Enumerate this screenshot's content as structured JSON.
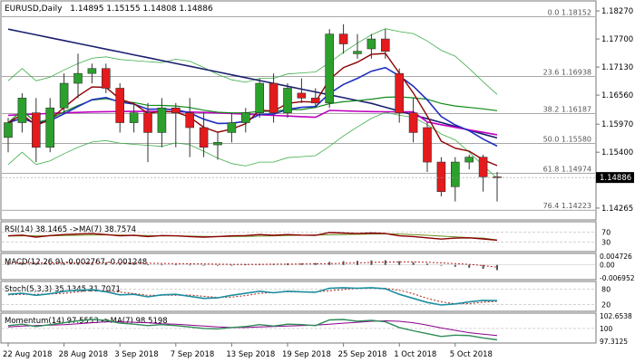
{
  "header": {
    "symbol": "EURUSD,Daily",
    "quote": "1.14895 1.15155 1.14808 1.14886"
  },
  "colors": {
    "bull": "#2ca02c",
    "bear": "#e41a1c",
    "ma_dark": "#8b0000",
    "ma_blue": "#1f2fbf",
    "ma_navy": "#1a1f6e",
    "ma_green": "#0e8a16",
    "ma_magenta": "#c000c0",
    "band": "#3fae49",
    "fib": "#8a8a8a",
    "pane_border": "#777777",
    "price_tag_bg": "#000000",
    "rsi_line": "#8b0000",
    "rsi_signal": "#6b8e23",
    "stoch_main": "#1b8fa0",
    "stoch_signal": "#b22222",
    "momentum_main": "#2e8b57",
    "momentum_signal": "#8b008b"
  },
  "main_chart": {
    "price_axis": [
      "1.18270",
      "1.17700",
      "1.17130",
      "1.16560",
      "1.15970",
      "1.15400",
      "1.14886",
      "1.14265"
    ],
    "current_price_label": "1.14886",
    "fib_levels": [
      {
        "label": "0.0 1.18152",
        "price": 1.18152
      },
      {
        "label": "23.6 1.16938",
        "price": 1.16938
      },
      {
        "label": "38.2 1.16187",
        "price": 1.16187
      },
      {
        "label": "50.0 1.15580",
        "price": 1.1558
      },
      {
        "label": "61.8 1.14974",
        "price": 1.14974
      },
      {
        "label": "76.4 1.14223",
        "price": 1.14223
      }
    ]
  },
  "chart_data": {
    "type": "candlestick",
    "ylim": [
      1.1408,
      1.184
    ],
    "x_labels": [
      "22 Aug 2018",
      "28 Aug 2018",
      "3 Sep 2018",
      "7 Sep 2018",
      "13 Sep 2018",
      "19 Sep 2018",
      "25 Sep 2018",
      "1 Oct 2018",
      "5 Oct 2018"
    ],
    "x_label_index": [
      0,
      4,
      8,
      12,
      16,
      20,
      24,
      28,
      32
    ],
    "candles": [
      {
        "o": 1.157,
        "h": 1.161,
        "l": 1.154,
        "c": 1.16
      },
      {
        "o": 1.16,
        "h": 1.166,
        "l": 1.158,
        "c": 1.165
      },
      {
        "o": 1.162,
        "h": 1.165,
        "l": 1.152,
        "c": 1.155
      },
      {
        "o": 1.155,
        "h": 1.165,
        "l": 1.154,
        "c": 1.163
      },
      {
        "o": 1.163,
        "h": 1.17,
        "l": 1.162,
        "c": 1.168
      },
      {
        "o": 1.168,
        "h": 1.174,
        "l": 1.165,
        "c": 1.17
      },
      {
        "o": 1.17,
        "h": 1.172,
        "l": 1.168,
        "c": 1.171
      },
      {
        "o": 1.171,
        "h": 1.172,
        "l": 1.166,
        "c": 1.167
      },
      {
        "o": 1.167,
        "h": 1.168,
        "l": 1.158,
        "c": 1.16
      },
      {
        "o": 1.16,
        "h": 1.164,
        "l": 1.158,
        "c": 1.162
      },
      {
        "o": 1.162,
        "h": 1.164,
        "l": 1.152,
        "c": 1.158
      },
      {
        "o": 1.158,
        "h": 1.165,
        "l": 1.155,
        "c": 1.163
      },
      {
        "o": 1.163,
        "h": 1.164,
        "l": 1.155,
        "c": 1.162
      },
      {
        "o": 1.162,
        "h": 1.165,
        "l": 1.153,
        "c": 1.159
      },
      {
        "o": 1.159,
        "h": 1.162,
        "l": 1.153,
        "c": 1.155
      },
      {
        "o": 1.1555,
        "h": 1.158,
        "l": 1.1525,
        "c": 1.156
      },
      {
        "o": 1.158,
        "h": 1.162,
        "l": 1.156,
        "c": 1.16
      },
      {
        "o": 1.16,
        "h": 1.163,
        "l": 1.158,
        "c": 1.162
      },
      {
        "o": 1.162,
        "h": 1.169,
        "l": 1.161,
        "c": 1.168
      },
      {
        "o": 1.168,
        "h": 1.17,
        "l": 1.16,
        "c": 1.162
      },
      {
        "o": 1.162,
        "h": 1.168,
        "l": 1.161,
        "c": 1.167
      },
      {
        "o": 1.166,
        "h": 1.169,
        "l": 1.164,
        "c": 1.165
      },
      {
        "o": 1.165,
        "h": 1.167,
        "l": 1.163,
        "c": 1.164
      },
      {
        "o": 1.164,
        "h": 1.179,
        "l": 1.163,
        "c": 1.178
      },
      {
        "o": 1.178,
        "h": 1.18,
        "l": 1.174,
        "c": 1.176
      },
      {
        "o": 1.174,
        "h": 1.178,
        "l": 1.173,
        "c": 1.1745
      },
      {
        "o": 1.175,
        "h": 1.178,
        "l": 1.173,
        "c": 1.177
      },
      {
        "o": 1.177,
        "h": 1.179,
        "l": 1.173,
        "c": 1.1745
      },
      {
        "o": 1.17,
        "h": 1.171,
        "l": 1.16,
        "c": 1.162
      },
      {
        "o": 1.162,
        "h": 1.165,
        "l": 1.156,
        "c": 1.158
      },
      {
        "o": 1.159,
        "h": 1.16,
        "l": 1.15,
        "c": 1.152
      },
      {
        "o": 1.152,
        "h": 1.153,
        "l": 1.145,
        "c": 1.146
      },
      {
        "o": 1.147,
        "h": 1.153,
        "l": 1.144,
        "c": 1.152
      },
      {
        "o": 1.152,
        "h": 1.1535,
        "l": 1.1505,
        "c": 1.153
      },
      {
        "o": 1.153,
        "h": 1.1535,
        "l": 1.146,
        "c": 1.149
      },
      {
        "o": 1.149,
        "h": 1.15,
        "l": 1.144,
        "c": 1.1489
      }
    ]
  },
  "indicators": {
    "rsi": {
      "label": "RSI(14) 38.1465  ->MA(7) 38.7574",
      "axis": [
        "70",
        "30"
      ],
      "levels": [
        70,
        30
      ],
      "range": [
        0,
        100
      ],
      "line": [
        55,
        58,
        50,
        56,
        60,
        62,
        64,
        60,
        55,
        57,
        52,
        56,
        55,
        52,
        50,
        52,
        55,
        56,
        60,
        57,
        60,
        58,
        57,
        68,
        66,
        64,
        66,
        64,
        55,
        52,
        47,
        42,
        46,
        47,
        43,
        38
      ],
      "signal": [
        54,
        55,
        55,
        55,
        56,
        57,
        58,
        59,
        58,
        57,
        56,
        55,
        55,
        54,
        53,
        52,
        52,
        53,
        54,
        55,
        56,
        57,
        58,
        59,
        60,
        61,
        62,
        63,
        62,
        60,
        57,
        54,
        51,
        48,
        46,
        39
      ]
    },
    "macd": {
      "label": "MACD(12,26,9) -0.002767 -0.001248",
      "axis": [
        "0.004726",
        "0.00",
        "-0.006952"
      ],
      "range": [
        -0.006952,
        0.004726
      ],
      "hist": [
        0.001,
        0.0012,
        0.0008,
        0.0006,
        0.0009,
        0.0012,
        0.0014,
        0.0013,
        0.0009,
        0.0006,
        0.0003,
        0.0002,
        0.0002,
        0.0001,
        -0.0001,
        -0.0002,
        0.0,
        0.0002,
        0.0005,
        0.0006,
        0.0008,
        0.0009,
        0.001,
        0.0016,
        0.002,
        0.0022,
        0.0024,
        0.0025,
        0.002,
        0.0014,
        0.0007,
        -0.0002,
        -0.001,
        -0.0015,
        -0.0021,
        -0.0028
      ],
      "signal": [
        0.0012,
        0.0012,
        0.0012,
        0.0011,
        0.0011,
        0.0011,
        0.0011,
        0.0012,
        0.0011,
        0.001,
        0.0009,
        0.0008,
        0.0007,
        0.0006,
        0.0005,
        0.0004,
        0.0003,
        0.0003,
        0.0003,
        0.0004,
        0.0004,
        0.0005,
        0.0006,
        0.0007,
        0.0009,
        0.0011,
        0.0013,
        0.0015,
        0.0016,
        0.0016,
        0.0014,
        0.0011,
        0.0007,
        0.0003,
        -0.0004,
        -0.0012
      ]
    },
    "stoch": {
      "label": "Stoch(5,3,3) 35.1345 31.7071",
      "axis": [
        "80",
        "20"
      ],
      "levels": [
        80,
        20
      ],
      "range": [
        0,
        100
      ],
      "main": [
        60,
        64,
        56,
        62,
        72,
        76,
        78,
        70,
        58,
        60,
        50,
        58,
        60,
        52,
        44,
        46,
        56,
        64,
        72,
        66,
        72,
        70,
        68,
        84,
        86,
        84,
        86,
        82,
        60,
        44,
        28,
        18,
        22,
        30,
        36,
        35
      ],
      "signal": [
        58,
        60,
        60,
        61,
        64,
        70,
        75,
        74,
        69,
        63,
        56,
        56,
        56,
        57,
        52,
        48,
        49,
        55,
        64,
        67,
        70,
        69,
        70,
        74,
        79,
        84,
        85,
        84,
        76,
        62,
        44,
        30,
        23,
        23,
        29,
        32
      ]
    },
    "momentum": {
      "label": "Momentum(14) 97.5553  ->MA(7) 98.5198",
      "axis": [
        "102.6538",
        "100",
        "97.3125"
      ],
      "level": 100,
      "range": [
        97.3125,
        102.6538
      ],
      "main": [
        100.6,
        100.9,
        100.4,
        100.8,
        101.2,
        101.6,
        101.9,
        101.7,
        101.1,
        100.9,
        100.6,
        100.8,
        100.6,
        100.3,
        100.0,
        99.9,
        100.2,
        100.4,
        100.8,
        100.5,
        100.9,
        100.8,
        100.6,
        101.8,
        101.9,
        101.5,
        101.7,
        101.4,
        100.2,
        99.5,
        98.9,
        98.3,
        98.6,
        98.5,
        98.0,
        97.6
      ],
      "signal": [
        100.3,
        100.5,
        100.6,
        100.7,
        100.8,
        101.0,
        101.2,
        101.4,
        101.4,
        101.3,
        101.2,
        101.0,
        100.9,
        100.7,
        100.5,
        100.3,
        100.2,
        100.2,
        100.3,
        100.4,
        100.5,
        100.6,
        100.7,
        100.9,
        101.1,
        101.3,
        101.5,
        101.6,
        101.5,
        101.2,
        100.7,
        100.1,
        99.6,
        99.1,
        98.8,
        98.5
      ]
    }
  }
}
